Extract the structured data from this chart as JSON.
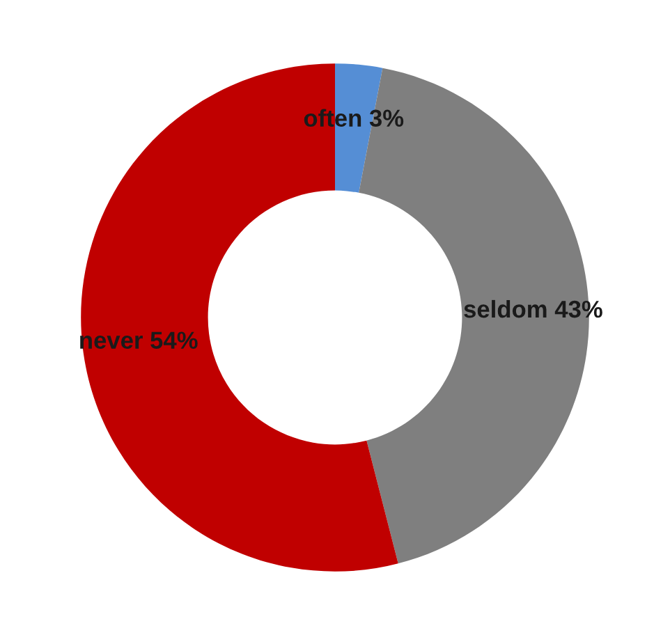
{
  "chart_data": {
    "type": "donut",
    "categories": [
      "often",
      "seldom",
      "never"
    ],
    "values": [
      3,
      43,
      54
    ],
    "colors": [
      "#558ed5",
      "#7f7f7f",
      "#c00000"
    ],
    "value_labels": [
      "3%",
      "43%",
      "54%"
    ],
    "legend": false
  }
}
